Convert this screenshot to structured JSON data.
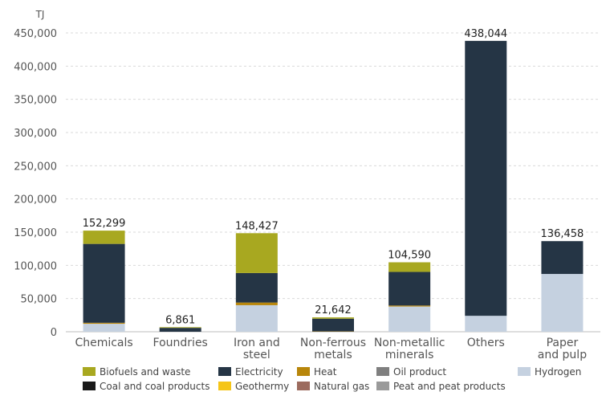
{
  "chart_data": {
    "type": "bar",
    "stacked": true,
    "y_unit_label": "TJ",
    "ylim": [
      0,
      450000
    ],
    "y_ticks": [
      "0",
      "50,000",
      "100,000",
      "150,000",
      "200,000",
      "250,000",
      "300,000",
      "350,000",
      "400,000",
      "450,000"
    ],
    "y_tick_values": [
      0,
      50000,
      100000,
      150000,
      200000,
      250000,
      300000,
      350000,
      400000,
      450000
    ],
    "grid": true,
    "legend_position": "bottom",
    "categories": [
      [
        "Chemicals"
      ],
      [
        "Foundries"
      ],
      [
        "Iron and",
        "steel"
      ],
      [
        "Non-ferrous",
        "metals"
      ],
      [
        "Non-metallic",
        "minerals"
      ],
      [
        "Others"
      ],
      [
        "Paper",
        "and pulp"
      ]
    ],
    "totals": [
      152299,
      6861,
      148427,
      21642,
      104590,
      438044,
      136458
    ],
    "total_labels": [
      "152,299",
      "6,861",
      "148,427",
      "21,642",
      "104,590",
      "438,044",
      "136,458"
    ],
    "series": [
      {
        "name": "Hydrogen",
        "color": "#c5d1e0",
        "values": [
          12000,
          0,
          40000,
          0,
          38000,
          24000,
          87000
        ]
      },
      {
        "name": "Coal and coal products",
        "color": "#1a1a1a",
        "values": [
          0,
          0,
          0,
          0,
          0,
          0,
          0
        ]
      },
      {
        "name": "Geothermy",
        "color": "#f5c518",
        "values": [
          0,
          0,
          0,
          0,
          0,
          0,
          0
        ]
      },
      {
        "name": "Natural gas",
        "color": "#9c6b5e",
        "values": [
          0,
          0,
          0,
          0,
          0,
          0,
          0
        ]
      },
      {
        "name": "Peat and peat products",
        "color": "#9a9a9a",
        "values": [
          0,
          0,
          0,
          0,
          0,
          0,
          0
        ]
      },
      {
        "name": "Oil product",
        "color": "#7f7f7f",
        "values": [
          0,
          0,
          0,
          0,
          0,
          0,
          0
        ]
      },
      {
        "name": "Heat",
        "color": "#b8860b",
        "values": [
          1500,
          0,
          4000,
          500,
          1500,
          0,
          0
        ]
      },
      {
        "name": "Electricity",
        "color": "#253545",
        "values": [
          118799,
          5861,
          44427,
          19142,
          50590,
          414044,
          49458
        ]
      },
      {
        "name": "Biofuels and waste",
        "color": "#a8a820",
        "values": [
          20000,
          1000,
          60000,
          2000,
          14500,
          0,
          0
        ]
      }
    ],
    "legend_rows": [
      [
        "Biofuels and waste",
        "Electricity",
        "Heat",
        "Oil product",
        "Hydrogen"
      ],
      [
        "Coal and coal products",
        "Geothermy",
        "Natural gas",
        "Peat and peat products"
      ]
    ]
  }
}
